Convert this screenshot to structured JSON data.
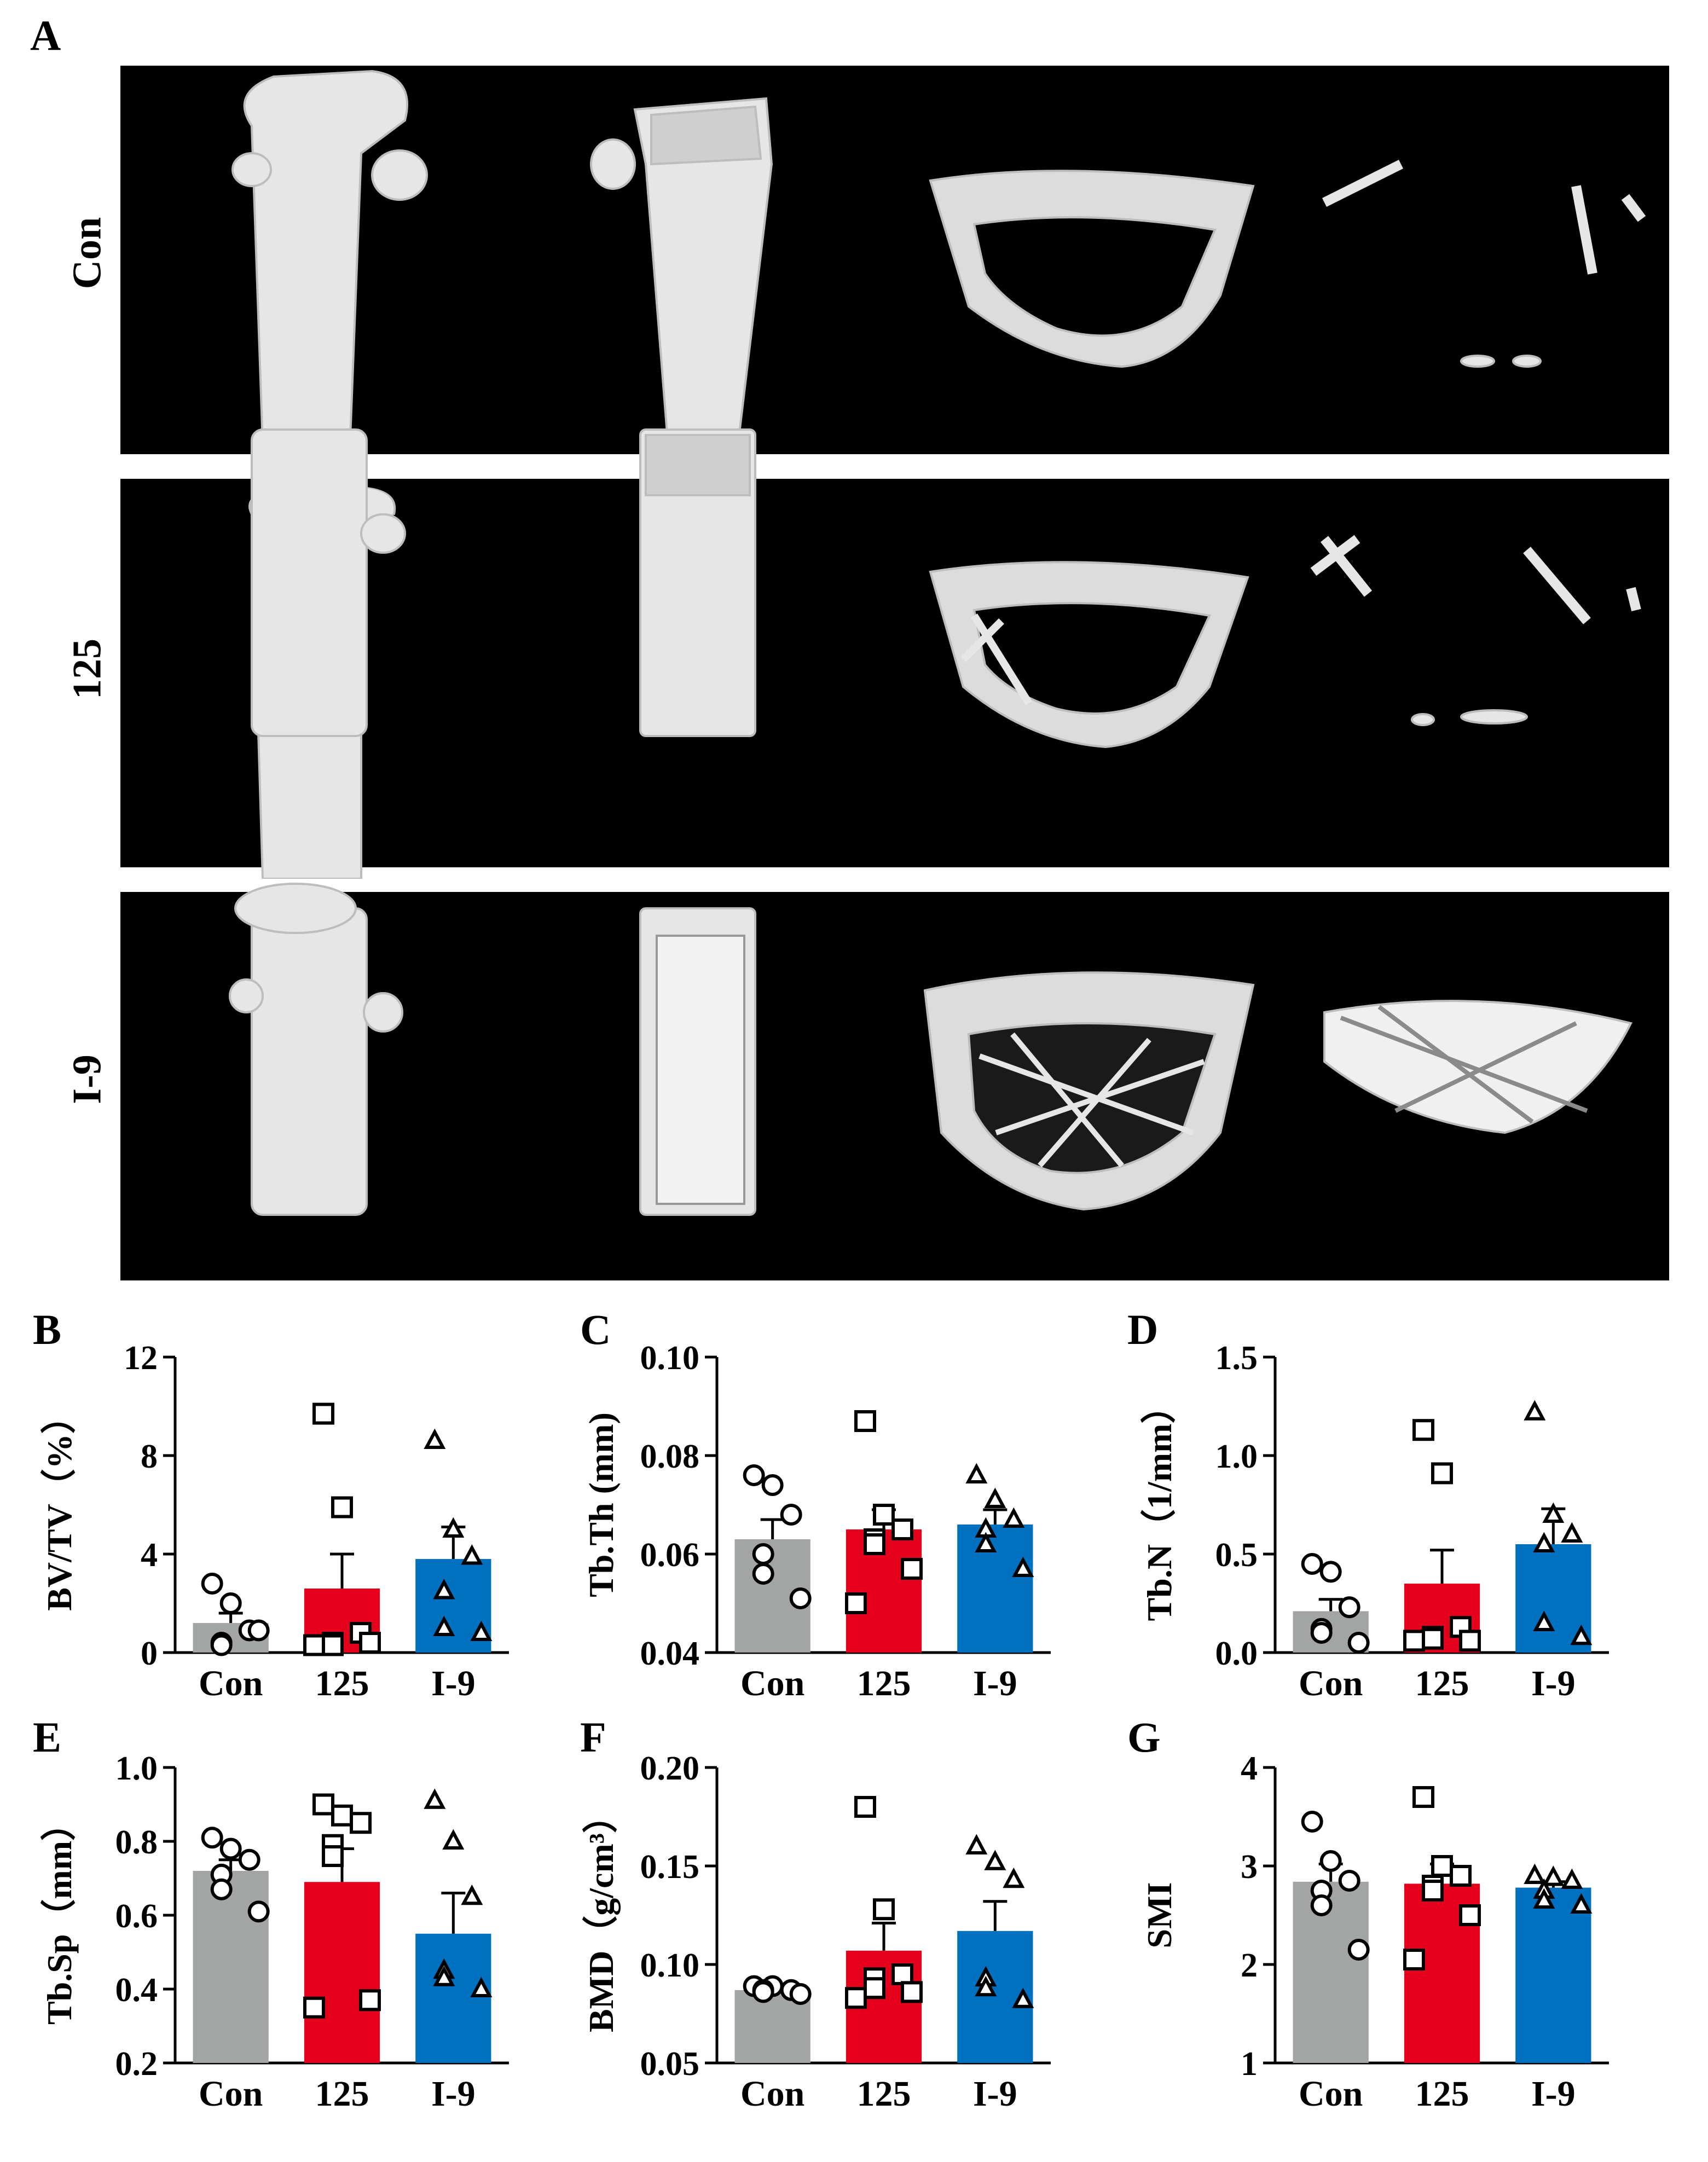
{
  "panels": {
    "A": "A",
    "B": "B",
    "C": "C",
    "D": "D",
    "E": "E",
    "F": "F",
    "G": "G"
  },
  "image_rows": [
    {
      "label": "Con"
    },
    {
      "label": "125"
    },
    {
      "label": "I-9"
    }
  ],
  "colors": {
    "Con": "#a3a5a4",
    "125": "#e5001c",
    "I-9": "#0070c0",
    "bone": "#e6e6e6",
    "background": "#000000"
  },
  "chart_data": [
    {
      "panel": "B",
      "type": "bar",
      "categories": [
        "Con",
        "125",
        "I-9"
      ],
      "values": [
        1.2,
        2.6,
        3.8
      ],
      "sem": [
        0.4,
        1.4,
        1.3
      ],
      "points": [
        [
          2.8,
          2.0,
          0.9,
          0.4,
          0.3,
          0.9
        ],
        [
          9.7,
          5.9,
          0.8,
          0.4,
          0.3,
          0.4,
          0.3
        ],
        [
          8.6,
          5.0,
          3.9,
          2.5,
          1.0,
          0.8
        ]
      ],
      "markers": [
        "circle",
        "square",
        "triangle"
      ],
      "ylabel": "BV/TV（%）",
      "ylim": [
        0,
        12
      ],
      "yticks": [
        0,
        4,
        8,
        12
      ],
      "ytick_labels": [
        "0",
        "4",
        "8",
        "12"
      ]
    },
    {
      "panel": "C",
      "type": "bar",
      "categories": [
        "Con",
        "125",
        "I-9"
      ],
      "values": [
        0.063,
        0.065,
        0.066
      ],
      "sem": [
        0.004,
        0.004,
        0.003
      ],
      "points": [
        [
          0.076,
          0.074,
          0.068,
          0.06,
          0.056,
          0.051
        ],
        [
          0.087,
          0.068,
          0.065,
          0.063,
          0.062,
          0.057,
          0.05
        ],
        [
          0.076,
          0.071,
          0.067,
          0.065,
          0.062,
          0.057
        ]
      ],
      "markers": [
        "circle",
        "square",
        "triangle"
      ],
      "ylabel": "Tb.Th (mm)",
      "ylim": [
        0.04,
        0.1
      ],
      "yticks": [
        0.04,
        0.06,
        0.08,
        0.1
      ],
      "ytick_labels": [
        "0.04",
        "0.06",
        "0.08",
        "0.10"
      ]
    },
    {
      "panel": "D",
      "type": "bar",
      "categories": [
        "Con",
        "125",
        "I-9"
      ],
      "values": [
        0.21,
        0.35,
        0.55
      ],
      "sem": [
        0.06,
        0.17,
        0.18
      ],
      "points": [
        [
          0.45,
          0.41,
          0.23,
          0.12,
          0.1,
          0.05
        ],
        [
          1.13,
          0.91,
          0.13,
          0.08,
          0.07,
          0.06,
          0.06
        ],
        [
          1.22,
          0.7,
          0.6,
          0.55,
          0.15,
          0.08
        ]
      ],
      "markers": [
        "circle",
        "square",
        "triangle"
      ],
      "ylabel": "Tb.N（1/mm）",
      "ylim": [
        0,
        1.5
      ],
      "yticks": [
        0,
        0.5,
        1.0,
        1.5
      ],
      "ytick_labels": [
        "0.0",
        "0.5",
        "1.0",
        "1.5"
      ]
    },
    {
      "panel": "E",
      "type": "bar",
      "categories": [
        "Con",
        "125",
        "I-9"
      ],
      "values": [
        0.72,
        0.69,
        0.55
      ],
      "sem": [
        0.03,
        0.09,
        0.11
      ],
      "points": [
        [
          0.81,
          0.78,
          0.75,
          0.71,
          0.67,
          0.61
        ],
        [
          0.9,
          0.87,
          0.85,
          0.79,
          0.76,
          0.37,
          0.35
        ],
        [
          0.91,
          0.8,
          0.65,
          0.45,
          0.43,
          0.4
        ]
      ],
      "markers": [
        "circle",
        "square",
        "triangle"
      ],
      "ylabel": "Tb.Sp（mm）",
      "ylim": [
        0.2,
        1.0
      ],
      "yticks": [
        0.2,
        0.4,
        0.6,
        0.8,
        1.0
      ],
      "ytick_labels": [
        "0.2",
        "0.4",
        "0.6",
        "0.8",
        "1.0"
      ]
    },
    {
      "panel": "F",
      "type": "bar",
      "categories": [
        "Con",
        "125",
        "I-9"
      ],
      "values": [
        0.087,
        0.107,
        0.117
      ],
      "sem": [
        0.002,
        0.014,
        0.015
      ],
      "points": [
        [
          0.089,
          0.089,
          0.087,
          0.087,
          0.086,
          0.085
        ],
        [
          0.18,
          0.128,
          0.095,
          0.093,
          0.088,
          0.086,
          0.083
        ],
        [
          0.16,
          0.152,
          0.143,
          0.093,
          0.088,
          0.082
        ]
      ],
      "markers": [
        "circle",
        "square",
        "triangle"
      ],
      "ylabel": "BMD（g/cm³）",
      "ylim": [
        0.05,
        0.2
      ],
      "yticks": [
        0.05,
        0.1,
        0.15,
        0.2
      ],
      "ytick_labels": [
        "0.05",
        "0.10",
        "0.15",
        "0.20"
      ]
    },
    {
      "panel": "G",
      "type": "bar",
      "categories": [
        "Con",
        "125",
        "I-9"
      ],
      "values": [
        2.84,
        2.82,
        2.78
      ],
      "sem": [
        0.18,
        0.2,
        0.06
      ],
      "points": [
        [
          3.45,
          3.05,
          2.85,
          2.75,
          2.6,
          2.15
        ],
        [
          3.7,
          3.0,
          2.9,
          2.8,
          2.75,
          2.5,
          2.05
        ],
        [
          2.9,
          2.88,
          2.85,
          2.75,
          2.65,
          2.6
        ]
      ],
      "markers": [
        "circle",
        "square",
        "triangle"
      ],
      "ylabel": "SMI",
      "ylim": [
        1,
        4
      ],
      "yticks": [
        1,
        2,
        3,
        4
      ],
      "ytick_labels": [
        "1",
        "2",
        "3",
        "4"
      ]
    }
  ]
}
